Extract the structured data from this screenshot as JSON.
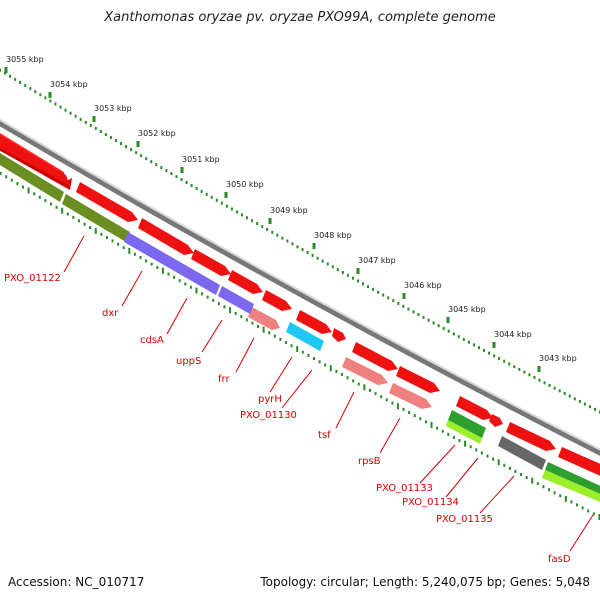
{
  "title": "Xanthomonas oryzae pv. oryzae PXO99A, complete genome",
  "footer": {
    "accession": "Accession: NC_010717",
    "topology": "Topology: circular; Length: 5,240,075 bp; Genes: 5,048"
  },
  "kbp_ticks": [
    "3055 kbp",
    "3054 kbp",
    "3053 kbp",
    "3052 kbp",
    "3051 kbp",
    "3050 kbp",
    "3049 kbp",
    "3048 kbp",
    "3047 kbp",
    "3046 kbp",
    "3045 kbp",
    "3044 kbp",
    "3043 kbp"
  ],
  "gene_labels": [
    "PXO_01122",
    "dxr",
    "cdsA",
    "uppS",
    "frr",
    "pyrH",
    "PXO_01130",
    "tsf",
    "rpsB",
    "PXO_01133",
    "PXO_01134",
    "PXO_01135",
    "fasD"
  ],
  "colors": {
    "forward_gene": "#ee1111",
    "reverse_gene": "#ee8080",
    "cog_olive": "#6b8e23",
    "cog_purple": "#7b68ee",
    "cog_cyan": "#1ec8f0",
    "cog_green": "#2e9e2e",
    "cog_lime": "#9aee2a",
    "cog_gray": "#666666",
    "backbone": "#8a8a8a",
    "tick_dots": "#2a8a2a",
    "label": "#d40000"
  }
}
